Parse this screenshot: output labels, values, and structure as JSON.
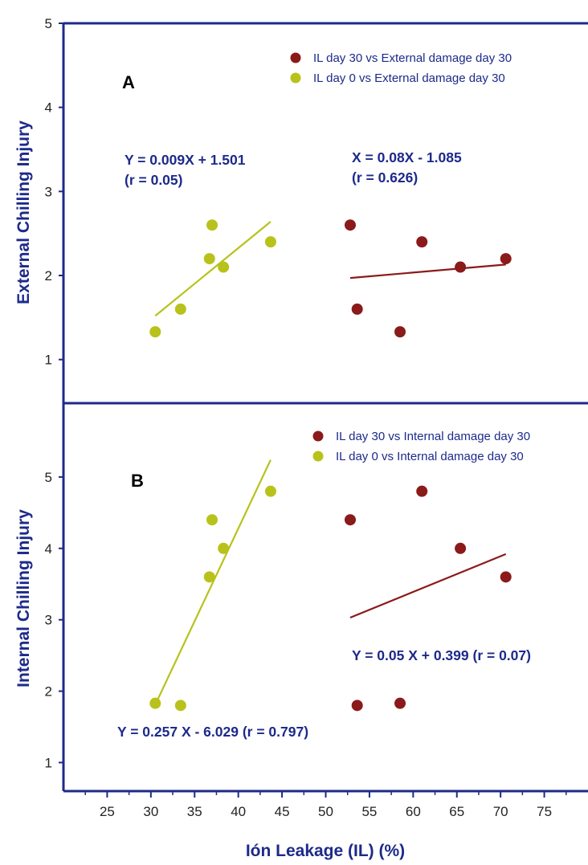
{
  "colors": {
    "axis": "#1d2a8a",
    "series_day30": "#8b1a1a",
    "series_day0": "#b8c21a"
  },
  "chart_data": [
    {
      "type": "scatter",
      "panel_label": "A",
      "ylabel": "External Chilling Injury",
      "xlim": [
        20,
        80
      ],
      "ylim": [
        0.5,
        5
      ],
      "yticks": [
        1,
        2,
        3,
        4,
        5
      ],
      "legend_position": "top-right",
      "series": [
        {
          "name": "IL day 30 vs External damage day 30",
          "color": "#8b1a1a",
          "points": [
            [
              52.8,
              2.6
            ],
            [
              53.6,
              1.6
            ],
            [
              58.5,
              1.33
            ],
            [
              61.0,
              2.4
            ],
            [
              65.4,
              2.1
            ],
            [
              70.6,
              2.2
            ]
          ],
          "fit": {
            "x": [
              52.8,
              70.6
            ],
            "y": [
              1.97,
              2.13
            ]
          },
          "equation": [
            "Y = 0.009X + 1.501",
            "(r = 0.05)"
          ]
        },
        {
          "name": "IL day 0 vs External damage day 30",
          "color": "#b8c21a",
          "points": [
            [
              30.5,
              1.33
            ],
            [
              33.4,
              1.6
            ],
            [
              36.7,
              2.2
            ],
            [
              37.0,
              2.6
            ],
            [
              38.3,
              2.1
            ],
            [
              43.7,
              2.4
            ]
          ],
          "fit": {
            "x": [
              30.5,
              43.7
            ],
            "y": [
              1.52,
              2.64
            ]
          },
          "equation": [
            "X = 0.08X - 1.085",
            "(r = 0.626)"
          ]
        }
      ]
    },
    {
      "type": "scatter",
      "panel_label": "B",
      "ylabel": "Internal Chilling Injury",
      "xlabel": "Ión Leakage  (IL) (%)",
      "xlim": [
        20,
        80
      ],
      "xticks": [
        25,
        30,
        35,
        40,
        45,
        50,
        55,
        60,
        65,
        70,
        75
      ],
      "ylim": [
        0.6,
        6.0
      ],
      "yticks": [
        1,
        2,
        3,
        4,
        5
      ],
      "legend_position": "top-right",
      "series": [
        {
          "name": "IL day 30 vs Internal damage day 30",
          "color": "#8b1a1a",
          "points": [
            [
              52.8,
              4.4
            ],
            [
              53.6,
              1.8
            ],
            [
              58.5,
              1.83
            ],
            [
              61.0,
              4.8
            ],
            [
              65.4,
              4.0
            ],
            [
              70.6,
              3.6
            ]
          ],
          "fit": {
            "x": [
              52.8,
              70.6
            ],
            "y": [
              3.03,
              3.92
            ]
          },
          "equation": [
            "Y = 0.05 X + 0.399 (r = 0.07)"
          ]
        },
        {
          "name": "IL day 0 vs Internal damage day 30",
          "color": "#b8c21a",
          "points": [
            [
              30.5,
              1.83
            ],
            [
              33.4,
              1.8
            ],
            [
              36.7,
              3.6
            ],
            [
              37.0,
              4.4
            ],
            [
              38.3,
              4.0
            ],
            [
              43.7,
              4.8
            ]
          ],
          "fit": {
            "x": [
              30.5,
              43.7
            ],
            "y": [
              1.81,
              5.24
            ]
          },
          "equation": [
            "Y = 0.257 X - 6.029 (r = 0.797)"
          ]
        }
      ]
    }
  ]
}
